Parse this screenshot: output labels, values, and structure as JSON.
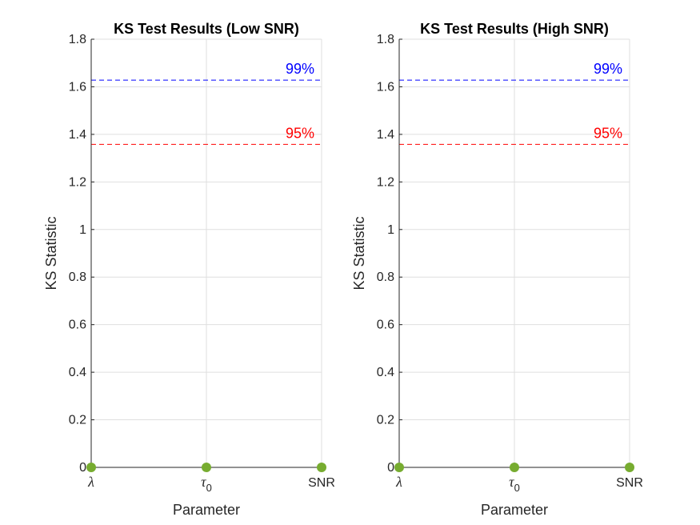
{
  "chart_data": [
    {
      "type": "scatter",
      "title": "KS Test Results (Low SNR)",
      "xlabel": "Parameter",
      "ylabel": "KS Statistic",
      "categories": [
        "λ",
        "τ0",
        "SNR"
      ],
      "tick_labels": [
        {
          "main": "λ",
          "sub": ""
        },
        {
          "main": "τ",
          "sub": "0"
        },
        {
          "main": "SNR",
          "sub": ""
        }
      ],
      "values": [
        0,
        0,
        0
      ],
      "ylim": [
        0,
        1.8
      ],
      "yticks": [
        0,
        0.2,
        0.4,
        0.6,
        0.8,
        1,
        1.2,
        1.4,
        1.6,
        1.8
      ],
      "ytick_labels": [
        "0",
        "0.2",
        "0.4",
        "0.6",
        "0.8",
        "1",
        "1.2",
        "1.4",
        "1.6",
        "1.8"
      ],
      "grid": true,
      "marker_color": "#77ac30",
      "line_color": "#262626",
      "critical_values": [
        {
          "label": "95%",
          "value": 1.358,
          "color": "#ff0000",
          "line_style": "dashed"
        },
        {
          "label": "99%",
          "value": 1.628,
          "color": "#0000ff",
          "line_style": "dashed"
        }
      ]
    },
    {
      "type": "scatter",
      "title": "KS Test Results (High SNR)",
      "xlabel": "Parameter",
      "ylabel": "KS Statistic",
      "categories": [
        "λ",
        "τ0",
        "SNR"
      ],
      "tick_labels": [
        {
          "main": "λ",
          "sub": ""
        },
        {
          "main": "τ",
          "sub": "0"
        },
        {
          "main": "SNR",
          "sub": ""
        }
      ],
      "values": [
        0,
        0,
        0
      ],
      "ylim": [
        0,
        1.8
      ],
      "yticks": [
        0,
        0.2,
        0.4,
        0.6,
        0.8,
        1,
        1.2,
        1.4,
        1.6,
        1.8
      ],
      "ytick_labels": [
        "0",
        "0.2",
        "0.4",
        "0.6",
        "0.8",
        "1",
        "1.2",
        "1.4",
        "1.6",
        "1.8"
      ],
      "grid": true,
      "marker_color": "#77ac30",
      "line_color": "#262626",
      "critical_values": [
        {
          "label": "95%",
          "value": 1.358,
          "color": "#ff0000",
          "line_style": "dashed"
        },
        {
          "label": "99%",
          "value": 1.628,
          "color": "#0000ff",
          "line_style": "dashed"
        }
      ]
    }
  ]
}
